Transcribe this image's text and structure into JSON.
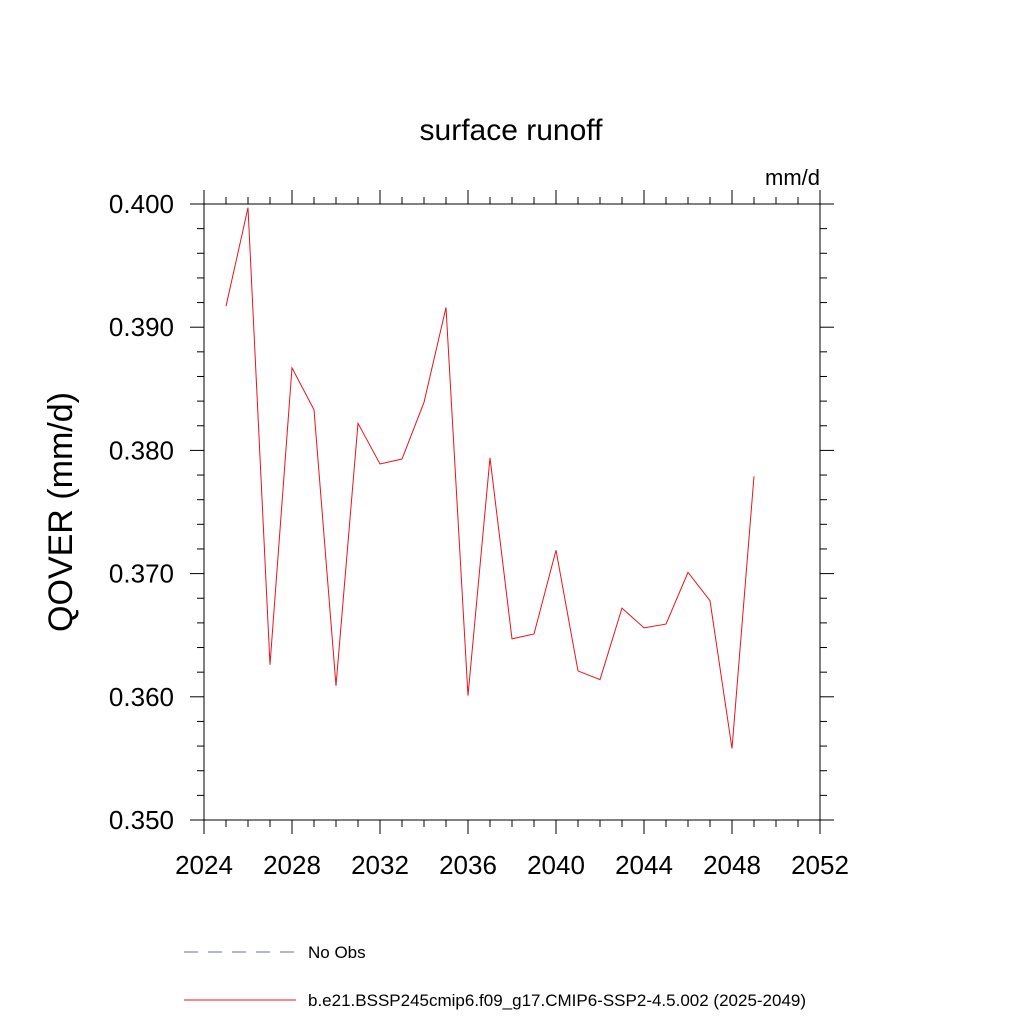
{
  "chart_data": {
    "type": "line",
    "title": "surface runoff",
    "units": "mm/d",
    "ylabel": "QOVER  (mm/d)",
    "xlabel": "",
    "xlim": [
      2024,
      2052
    ],
    "ylim": [
      0.35,
      0.4
    ],
    "x_ticks": [
      2024,
      2028,
      2032,
      2036,
      2040,
      2044,
      2048,
      2052
    ],
    "x_tick_labels": [
      "2024",
      "2028",
      "2032",
      "2036",
      "2040",
      "2044",
      "2048",
      "2052"
    ],
    "y_ticks": [
      0.35,
      0.36,
      0.37,
      0.38,
      0.39,
      0.4
    ],
    "y_tick_labels": [
      "0.350",
      "0.360",
      "0.370",
      "0.380",
      "0.390",
      "0.400"
    ],
    "grid": false,
    "legend_position": "bottom",
    "series": [
      {
        "name": "No Obs",
        "color": "#6a6ab0",
        "dash": "dashed",
        "x": [],
        "y": []
      },
      {
        "name": "b.e21.BSSP245cmip6.f09_g17.CMIP6-SSP2-4.5.002 (2025-2049)",
        "color": "#e8141e",
        "dash": "solid",
        "x": [
          2025,
          2026,
          2027,
          2028,
          2029,
          2030,
          2031,
          2032,
          2033,
          2034,
          2035,
          2036,
          2037,
          2038,
          2039,
          2040,
          2041,
          2042,
          2043,
          2044,
          2045,
          2046,
          2047,
          2048,
          2049
        ],
        "y": [
          0.3917,
          0.3997,
          0.3626,
          0.3867,
          0.3833,
          0.3609,
          0.3822,
          0.3789,
          0.3793,
          0.3839,
          0.3916,
          0.3601,
          0.3794,
          0.3647,
          0.3651,
          0.3719,
          0.3621,
          0.3614,
          0.3672,
          0.3656,
          0.3659,
          0.3701,
          0.3678,
          0.3558,
          0.3779
        ]
      }
    ]
  }
}
